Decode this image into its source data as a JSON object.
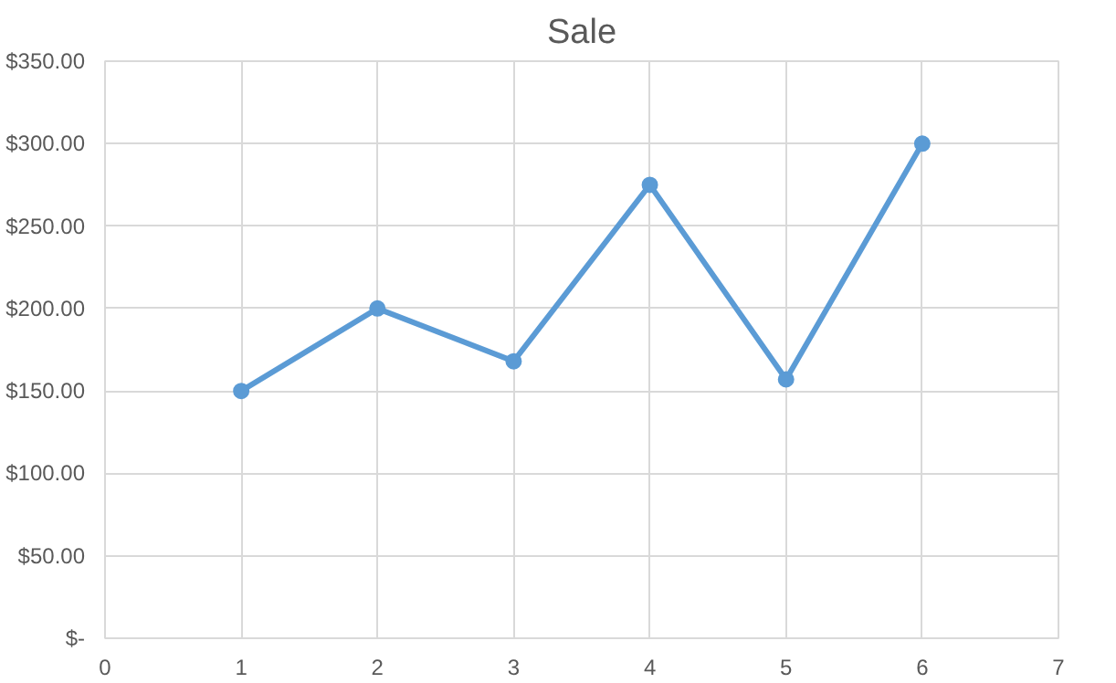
{
  "chart_data": {
    "type": "line",
    "title": "Sale",
    "x": [
      1,
      2,
      3,
      4,
      5,
      6
    ],
    "series": [
      {
        "color": "#5b9bd5",
        "values": [
          150,
          200,
          168,
          275,
          157,
          300
        ]
      }
    ],
    "xlim": [
      0,
      7
    ],
    "xticks": [
      0,
      1,
      2,
      3,
      4,
      5,
      6,
      7
    ],
    "ylim": [
      0,
      350
    ],
    "yticks": [
      {
        "value": 0,
        "label": "$-"
      },
      {
        "value": 50,
        "label": "$50.00"
      },
      {
        "value": 100,
        "label": "$100.00"
      },
      {
        "value": 150,
        "label": "$150.00"
      },
      {
        "value": 200,
        "label": "$200.00"
      },
      {
        "value": 250,
        "label": "$250.00"
      },
      {
        "value": 300,
        "label": "$300.00"
      },
      {
        "value": 350,
        "label": "$350.00"
      }
    ],
    "grid": true,
    "marker": "circle",
    "line_style": "solid"
  }
}
